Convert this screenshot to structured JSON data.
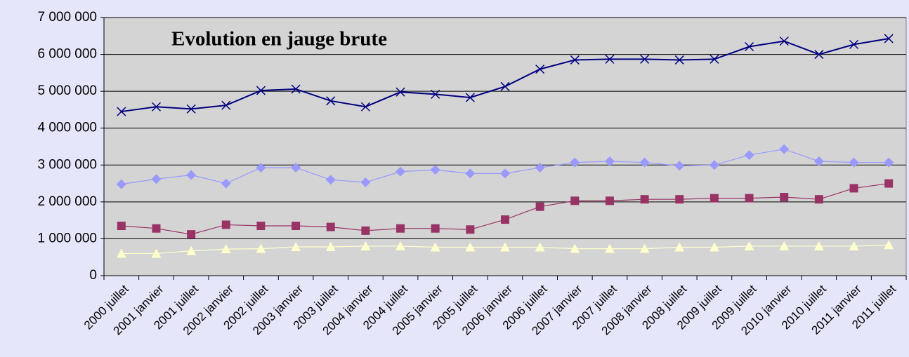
{
  "chart_data": {
    "type": "line",
    "title": "Evolution en jauge brute",
    "categories": [
      "2000 juillet",
      "2001 janvier",
      "2001 juillet",
      "2002 janvier",
      "2002 juillet",
      "2003 janvier",
      "2003 juillet",
      "2004 janvier",
      "2004 juillet",
      "2005 janvier",
      "2005 juillet",
      "2006 janvier",
      "2006 juillet",
      "2007 janvier",
      "2007 juillet",
      "2008 janvier",
      "2008 juillet",
      "2009 juillet",
      "2009 juillet",
      "2010 janvier",
      "2010 juillet",
      "2011 janvier",
      "2011 juillet"
    ],
    "series": [
      {
        "color": "#000080",
        "marker": "x",
        "values": [
          4450000,
          4580000,
          4520000,
          4620000,
          5020000,
          5060000,
          4740000,
          4580000,
          4980000,
          4920000,
          4830000,
          5130000,
          5600000,
          5850000,
          5870000,
          5870000,
          5850000,
          5870000,
          6210000,
          6360000,
          6000000,
          6270000,
          6430000
        ]
      },
      {
        "color": "#9999ff",
        "marker": "diamond",
        "values": [
          2480000,
          2620000,
          2730000,
          2500000,
          2930000,
          2930000,
          2600000,
          2530000,
          2820000,
          2870000,
          2770000,
          2770000,
          2930000,
          3070000,
          3100000,
          3070000,
          2980000,
          3000000,
          3270000,
          3430000,
          3100000,
          3070000,
          3070000
        ]
      },
      {
        "color": "#993366",
        "marker": "square",
        "values": [
          1350000,
          1280000,
          1120000,
          1380000,
          1350000,
          1350000,
          1320000,
          1220000,
          1280000,
          1280000,
          1250000,
          1520000,
          1870000,
          2030000,
          2030000,
          2070000,
          2070000,
          2100000,
          2100000,
          2130000,
          2070000,
          2370000,
          2500000
        ]
      },
      {
        "color": "#ffffcc",
        "marker": "triangle",
        "values": [
          600000,
          600000,
          670000,
          720000,
          730000,
          780000,
          780000,
          800000,
          800000,
          770000,
          770000,
          770000,
          770000,
          730000,
          730000,
          730000,
          770000,
          770000,
          800000,
          800000,
          800000,
          800000,
          830000
        ]
      }
    ],
    "ylim": [
      0,
      7000000
    ],
    "yticks": [
      0,
      {
        "value": 1000000,
        "label": "1 000 000"
      },
      {
        "value": 2000000,
        "label": "2 000 000"
      },
      {
        "value": 3000000,
        "label": "3 000 000"
      },
      {
        "value": 4000000,
        "label": "4 000 000"
      },
      {
        "value": 5000000,
        "label": "5 000 000"
      },
      {
        "value": 6000000,
        "label": "6 000 000"
      },
      {
        "value": 7000000,
        "label": "7 000 000"
      }
    ],
    "grid": true
  }
}
